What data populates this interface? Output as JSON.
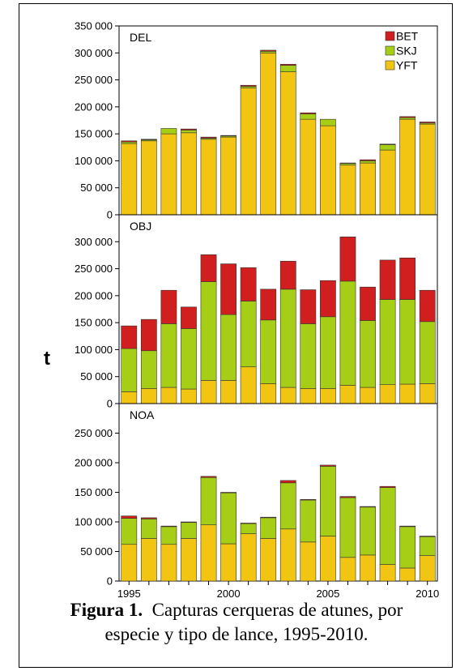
{
  "chart_data": [
    {
      "type": "bar",
      "stacked": true,
      "label": "DEL",
      "categories": [
        "1995",
        "1996",
        "1997",
        "1998",
        "1999",
        "2000",
        "2001",
        "2002",
        "2003",
        "2004",
        "2005",
        "2006",
        "2007",
        "2008",
        "2009",
        "2010"
      ],
      "series": [
        {
          "name": "YFT",
          "color": "#f2c512",
          "values": [
            132000,
            137000,
            150000,
            152000,
            140000,
            144000,
            235000,
            300000,
            265000,
            177000,
            165000,
            92000,
            96000,
            120000,
            177000,
            168000
          ]
        },
        {
          "name": "SKJ",
          "color": "#a6ce17",
          "values": [
            3000,
            2000,
            10000,
            5000,
            2000,
            2000,
            3000,
            3000,
            12000,
            10000,
            12000,
            3000,
            4000,
            10000,
            3000,
            2000
          ]
        },
        {
          "name": "BET",
          "color": "#d11f1f",
          "values": [
            2000,
            1000,
            0,
            2000,
            2000,
            1000,
            2000,
            2000,
            2000,
            2000,
            0,
            1000,
            2000,
            1000,
            2000,
            2000
          ]
        }
      ],
      "ylim": [
        0,
        350000
      ],
      "yticks": [
        "0",
        "50 000",
        "100 000",
        "150 000",
        "200 000",
        "250 000",
        "300 000",
        "350 000"
      ],
      "legend": [
        "BET",
        "SKJ",
        "YFT"
      ],
      "legend_position": "top-right"
    },
    {
      "type": "bar",
      "stacked": true,
      "label": "OBJ",
      "categories": [
        "1995",
        "1996",
        "1997",
        "1998",
        "1999",
        "2000",
        "2001",
        "2002",
        "2003",
        "2004",
        "2005",
        "2006",
        "2007",
        "2008",
        "2009",
        "2010"
      ],
      "series": [
        {
          "name": "YFT",
          "color": "#f2c512",
          "values": [
            22000,
            28000,
            30000,
            27000,
            43000,
            43000,
            68000,
            37000,
            30000,
            28000,
            28000,
            34000,
            30000,
            35000,
            36000,
            37000
          ]
        },
        {
          "name": "SKJ",
          "color": "#a6ce17",
          "values": [
            80000,
            70000,
            118000,
            112000,
            183000,
            122000,
            122000,
            118000,
            182000,
            120000,
            133000,
            193000,
            124000,
            158000,
            157000,
            115000
          ]
        },
        {
          "name": "BET",
          "color": "#d11f1f",
          "values": [
            42000,
            58000,
            62000,
            40000,
            50000,
            94000,
            62000,
            57000,
            52000,
            63000,
            67000,
            82000,
            62000,
            73000,
            77000,
            58000
          ]
        }
      ],
      "ylim": [
        0,
        350000
      ],
      "yticks": [
        "0",
        "50 000",
        "100 000",
        "150 000",
        "200 000",
        "250 000",
        "300 000"
      ]
    },
    {
      "type": "bar",
      "stacked": true,
      "label": "NOA",
      "categories": [
        "1995",
        "1996",
        "1997",
        "1998",
        "1999",
        "2000",
        "2001",
        "2002",
        "2003",
        "2004",
        "2005",
        "2006",
        "2007",
        "2008",
        "2009",
        "2010"
      ],
      "series": [
        {
          "name": "YFT",
          "color": "#f2c512",
          "values": [
            62000,
            72000,
            62000,
            72000,
            95000,
            63000,
            80000,
            72000,
            88000,
            66000,
            76000,
            40000,
            44000,
            28000,
            22000,
            43000
          ]
        },
        {
          "name": "SKJ",
          "color": "#a6ce17",
          "values": [
            44000,
            33000,
            30000,
            27000,
            80000,
            86000,
            17000,
            35000,
            78000,
            71000,
            118000,
            101000,
            81000,
            130000,
            70000,
            32000
          ]
        },
        {
          "name": "BET",
          "color": "#d11f1f",
          "values": [
            4000,
            2000,
            1000,
            1000,
            2000,
            1000,
            1000,
            1000,
            4000,
            1000,
            2000,
            2000,
            1000,
            2000,
            1000,
            1000
          ]
        }
      ],
      "ylim": [
        0,
        300000
      ],
      "yticks": [
        "0",
        "50 000",
        "100 000",
        "150 000",
        "200 000",
        "250 000"
      ]
    }
  ],
  "ylabel": "t",
  "xticks": [
    "1995",
    "2000",
    "2005",
    "2010"
  ],
  "caption": {
    "bold": "Figura 1.",
    "line1": "Capturas cerqueras de atunes, por",
    "line2": "especie y tipo de lance, 1995-2010."
  }
}
